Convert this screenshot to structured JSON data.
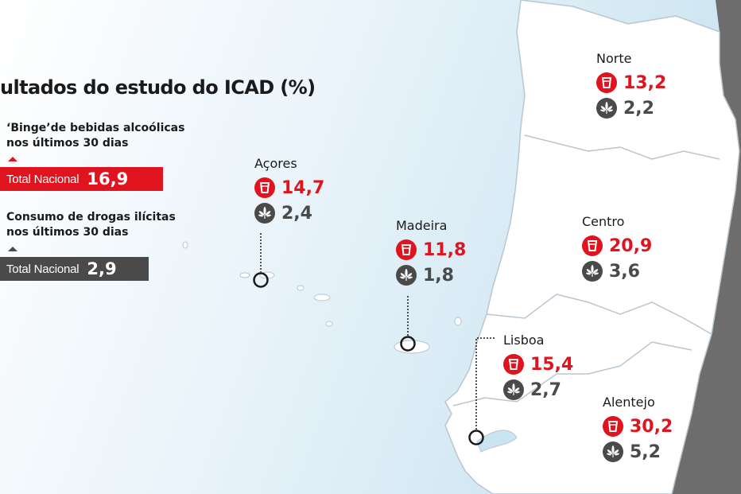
{
  "title": "ultados do estudo do ICAD (%)",
  "legend": {
    "binge": {
      "label_line1": "‘Binge’de bebidas alcoólicas",
      "label_line2": "nos últimos 30 dias",
      "total_label": "Total Nacional",
      "total_value": "16,9"
    },
    "drugs": {
      "label_line1": "Consumo de drogas ilícitas",
      "label_line2": "nos últimos 30 dias",
      "total_label": "Total Nacional",
      "total_value": "2,9"
    }
  },
  "regions": {
    "acores": {
      "name": "Açores",
      "binge": "14,7",
      "drugs": "2,4"
    },
    "madeira": {
      "name": "Madeira",
      "binge": "11,8",
      "drugs": "1,8"
    },
    "norte": {
      "name": "Norte",
      "binge": "13,2",
      "drugs": "2,2"
    },
    "centro": {
      "name": "Centro",
      "binge": "20,9",
      "drugs": "3,6"
    },
    "lisboa": {
      "name": "Lisboa",
      "binge": "15,4",
      "drugs": "2,7"
    },
    "alentejo": {
      "name": "Alentejo",
      "binge": "30,2",
      "drugs": "5,2"
    }
  },
  "colors": {
    "binge": "#e0141e",
    "drugs": "#4a4a4a",
    "land": "#ffffff",
    "border": "#b9c6d0",
    "spain": "#6b6b6b",
    "sea_light": "#ffffff",
    "sea_dark": "#cfe6f2"
  },
  "icons": {
    "binge": "cup-icon",
    "drugs": "cannabis-leaf-icon"
  }
}
